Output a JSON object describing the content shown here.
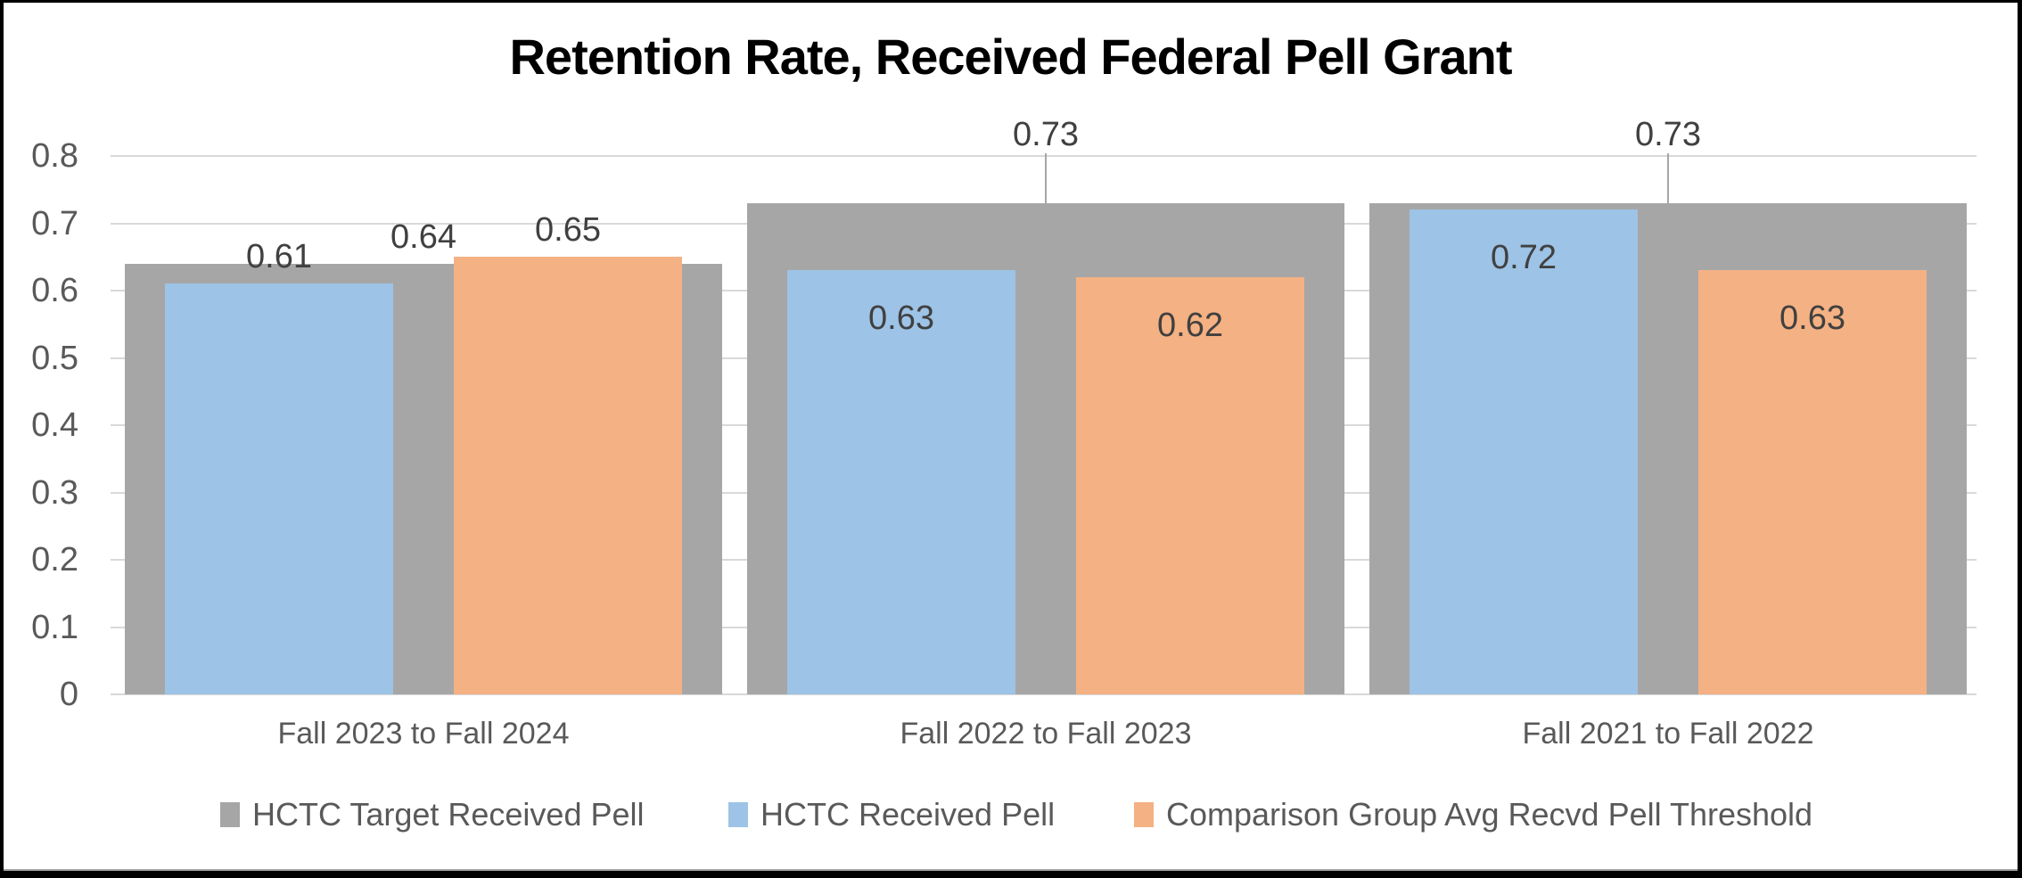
{
  "chart_data": {
    "type": "bar",
    "title": "Retention Rate, Received Federal Pell Grant",
    "categories": [
      "Fall 2023 to Fall 2024",
      "Fall 2022 to Fall 2023",
      "Fall 2021 to Fall 2022"
    ],
    "series": [
      {
        "name": "HCTC Target Received Pell",
        "color": "#A6A6A6",
        "role": "group-background",
        "values": [
          0.64,
          0.73,
          0.73
        ],
        "label_positions": [
          "above",
          "callout",
          "callout"
        ]
      },
      {
        "name": "HCTC Received Pell",
        "color": "#9DC3E6",
        "role": "overlay-left",
        "values": [
          0.61,
          0.63,
          0.72
        ],
        "label_positions": [
          "above",
          "inside",
          "inside"
        ]
      },
      {
        "name": "Comparison Group Avg Recvd Pell Threshold",
        "color": "#F4B183",
        "role": "overlay-right",
        "values": [
          0.65,
          0.62,
          0.63
        ],
        "label_positions": [
          "above",
          "inside",
          "inside"
        ]
      }
    ],
    "data_labels": {
      "format": "0.00",
      "shown": [
        "0.61",
        "0.64",
        "0.65",
        "0.63",
        "0.73",
        "0.62",
        "0.72",
        "0.73",
        "0.63"
      ]
    },
    "y_axis": {
      "min": 0,
      "max": 0.8,
      "step": 0.1,
      "tick_labels": [
        "0.8",
        "0.7",
        "0.6",
        "0.5",
        "0.4",
        "0.3",
        "0.2",
        "0.1",
        "0"
      ]
    },
    "x_axis": {
      "label": ""
    },
    "grid": true,
    "legend_position": "bottom",
    "colors": {
      "grid": "#D9D9D9",
      "axis_text": "#595959",
      "value_label": "#404040",
      "title_text": "#000000",
      "background": "#FFFFFF",
      "frame_border": "#000000"
    }
  }
}
